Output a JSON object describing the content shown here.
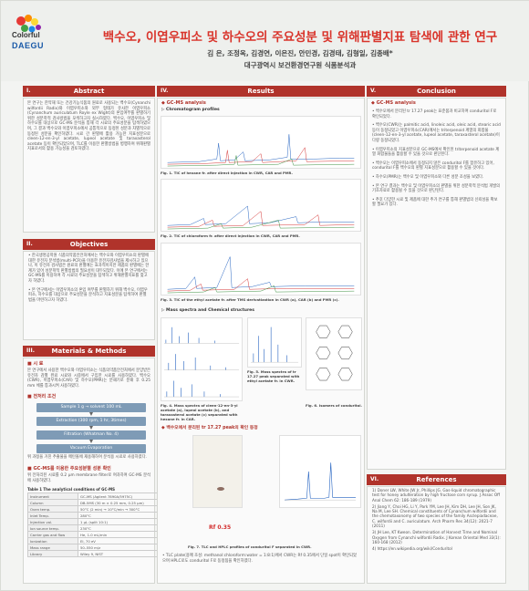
{
  "header": {
    "logo_top": "Colorful",
    "logo_bottom": "DAEGU",
    "title": "백수오, 이엽우피소 및 하수오의 주요성분 및 위해판별지표 탐색에 관한 연구",
    "authors": "김 은, 조정옥, 김경연, 이은진, 안민경, 김경태, 김형일, 김종배*",
    "affiliation": "대구광역시 보건환경연구원 식품분석과"
  },
  "sections": {
    "abstract": {
      "num": "I.",
      "label": "Abstract"
    },
    "objectives": {
      "num": "II.",
      "label": "Objectives"
    },
    "materials": {
      "num": "III.",
      "label": "Materials & Methods"
    },
    "results": {
      "num": "IV.",
      "label": "Results"
    },
    "conclusion": {
      "num": "V.",
      "label": "Conclusion"
    },
    "references": {
      "num": "VI.",
      "label": "References"
    }
  },
  "abstract_text": "본 연구는 한약재 또는 건강기능식품의 원료로 사용되는 백수오(Cynanchi wilfordii Radix)와 이엽우피소와 외부 형태가 유사한 이엽우피소(Cynanchum auriculatum Royle ex Wight)의 혼입여부를 판별하기 위한 성분학적 검사방법을 모색하고자 실시하였다. 백수오, 이엽우피소 및 하수오를 대상으로 GC-MS 분석을 통해 각 시료의 주요성분을 탐색하였으며, 그 결과 백수오와 이엽우피소에서 공통적으로 동정된 성분과 차별적으로 동정된 성분을 확인하였다. 시료 간 판별에 활용 가능한 지표성분으로 cleen-12-en-3-yl acetate, lupeol acetate 및 taraxasterol acetate 등이 확인되었으며, TLC를 이용한 판별방법을 병행하여 위해판별지표로서의 활용 가능성을 검토하였다.",
  "objectives_items": [
    "한국생명공학원 식품의약품안전처에서는 백수오와 이엽우피소의 판별에 대한 유전자 분석법(multi-PCR)을 이용한 유전자검사법을 제시하고 있으나, 이 유전자 검사법은 원료의 판별에는 효과적이지만 제품의 판별에는 한계가 있어 성분학적 판별방법의 필요성이 대두되었다. 이에 본 연구에서는 GC-MS를 이용하여 각 시료의 주요성분을 탐색하고 위해판별지표를 찾고자 하였다.",
    "본 연구에서는 이엽우피소의 혼입 여부를 판별하기 위해 백수오, 이엽우피소, 하수오를 대상으로 주요성분을 분석하고 지표성분을 탐색하여 판별법을 마련하고자 하였다."
  ],
  "materials": {
    "sub1": "■ 시 료",
    "text1": "본 연구에서 사용한 백수오와 이엽우피소는 식품의약품안전처에서 분양받은 유전자 감별 완료 시료와 시중에서 구입한 시료를 사용하였다. 백수오(CWR), 이엽우피소(CAR) 및 하수오(PMR)는 분쇄기로 분쇄 후 0.25 mm 체를 통과시켜 사용하였다.",
    "sub2": "■ 전처리 조건",
    "flow": [
      "Sample 1 g → solvent 100 mL",
      "Extraction (300 rpm, 1 hr, 3times)",
      "Filtration (Whatman No. 4)",
      "Vacuum Evaporation"
    ],
    "text2": "위 과정을 거친 추출물을 메탄올에 재용해하여 분석용 시료로 사용하였다.",
    "sub3": "■ GC-MS를 이용한 주요성분별 성분 확인",
    "text3": "위 전처리된 시료를 0.2 μm membrane filter로 여과하여 GC-MS 분석에 사용하였다.",
    "table_title": "Table 1 The analytical conditions of GC-MS",
    "table": [
      [
        "Instrument",
        "GC-MS (Agilent 7890A/5975C)"
      ],
      [
        "Column",
        "DB-5MS (30 m × 0.25 mm, 0.25 μm)"
      ],
      [
        "Oven temp.",
        "50°C (2 min) → 10°C/min → 300°C"
      ],
      [
        "Inlet Temp.",
        "280°C"
      ],
      [
        "Injection vol.",
        "1 μL (split 10:1)"
      ],
      [
        "Ion source temp.",
        "230°C"
      ],
      [
        "Carrier gas and flow",
        "He, 1.0 mL/min"
      ],
      [
        "Ionization",
        "EI, 70 eV"
      ],
      [
        "Mass range",
        "50–550 m/z"
      ],
      [
        "Library",
        "Wiley 9, NIST"
      ]
    ]
  },
  "results": {
    "sub1": "◆ GC-MS analysis",
    "sub1a": "▷ Chromatogram profiles",
    "fig1": "Fig. 1. TIC of hexane fr. after direct injection in CWR, CAR and PMR.",
    "fig2": "Fig. 2. TIC of chloroform fr. after direct injection in CWR, CAR and PMR.",
    "fig3": "Fig. 3. TIC of the ethyl acetate fr. after TMS derivatization in CWR (a), CAR (b) and PMR (c).",
    "sub1b": "▷ Mass spectra and Chemical structures",
    "fig4": "Fig. 4. Mass spectra of cleen-12-en-3-yl acetate (a), lupeol acetate (b), and taraxasterol acetate (c) separated with hexane fr. in CAR.",
    "fig5": "Fig. 5. Mass spectra of tr 17.27 peak separated with ethyl acetate fr. in CWR.",
    "fig6": "Fig. 6. Isomers of conduritol.",
    "sub2": "◆ 백수오에서 분리된 tr 17.27 peak의 확인 동정",
    "rf_label": "Rf 0.35",
    "fig7": "Fig. 7. TLC and HPLC profiles of conduritol F separated in CWR.",
    "tlc_text": "TLC plate(용매 조성: methanol:chloroform:water = 1:8:1)에서 CWR는 Rf 0.35에서 단일 spot이 확인되었으며 HPLC로도 conduritol F로 동정됨을 확인하였다."
  },
  "conclusion_items": [
    "◆ GC-MS analysis",
    "백수오에서 분리된 tr 17.27 peak는 표준품과 비교하여 conduritol F로 확인되었다.",
    "백수오(CWR)는 palmitic acid, linoleic acid, oleic acid, stearic acid 등이 동정되었고 이엽우피소(CAR)에서는 triterpenoid 계열의 화합물(cleen-12-en-3-yl acetate, lupeol acetate, taraxasterol acetate)이 다량 동정되었다.",
    "이엽우피소의 지표성분으로 GC-MS에서 확인된 triterpenoid acetate 계열 화합물들을 활용할 수 있을 것으로 판단된다.",
    "백수오는 이엽우피소에서 동정되지 않은 conduritol F를 함유하고 있어, conduritol F를 백수오의 판별 지표성분으로 활용할 수 있을 것이다.",
    "하수오(PMR)는 백수오 및 이엽우피소와 다른 성분 조성을 보였다.",
    "본 연구 결과는 백수오 및 이엽우피소의 판별을 위한 성분학적 분석법 개발의 기초자료로 활용될 수 있을 것으로 판단된다.",
    "추후 다양한 시료 및 제품에 대한 추가 연구를 통해 판별법의 신뢰성을 확보할 필요가 있다."
  ],
  "references": [
    "1) Doner LW, White JW Jr, Phillips JG. Gas-liquid chromatographic test for honey adulteration by high fructose corn syrup. J Assoc Off Anal Chem 62: 186-189 (1979)",
    "2) Jiang Y, Choi HG, Li Y, Park YM, Lee JH, Kim DH, Lee JH, Son JK, Na M, Lee SH. Chemical constituents of Cynanchum wilfordii and the chemotaxonomy of two species of the family Asclepiadaceae, C. wilfordii and C. auriculatum. Arch Pharm Res 34(12): 2021-7 (2011)",
    "3) JH Lee, KT Kweon. Determination of Harvest Time and Nominal Oxygen from Cynanchi wilfordii Radix. J Korean Oriental Med 33(1): 160-168 (2012)",
    "4) https://en.wikipedia.org/wiki/Conduritol"
  ]
}
